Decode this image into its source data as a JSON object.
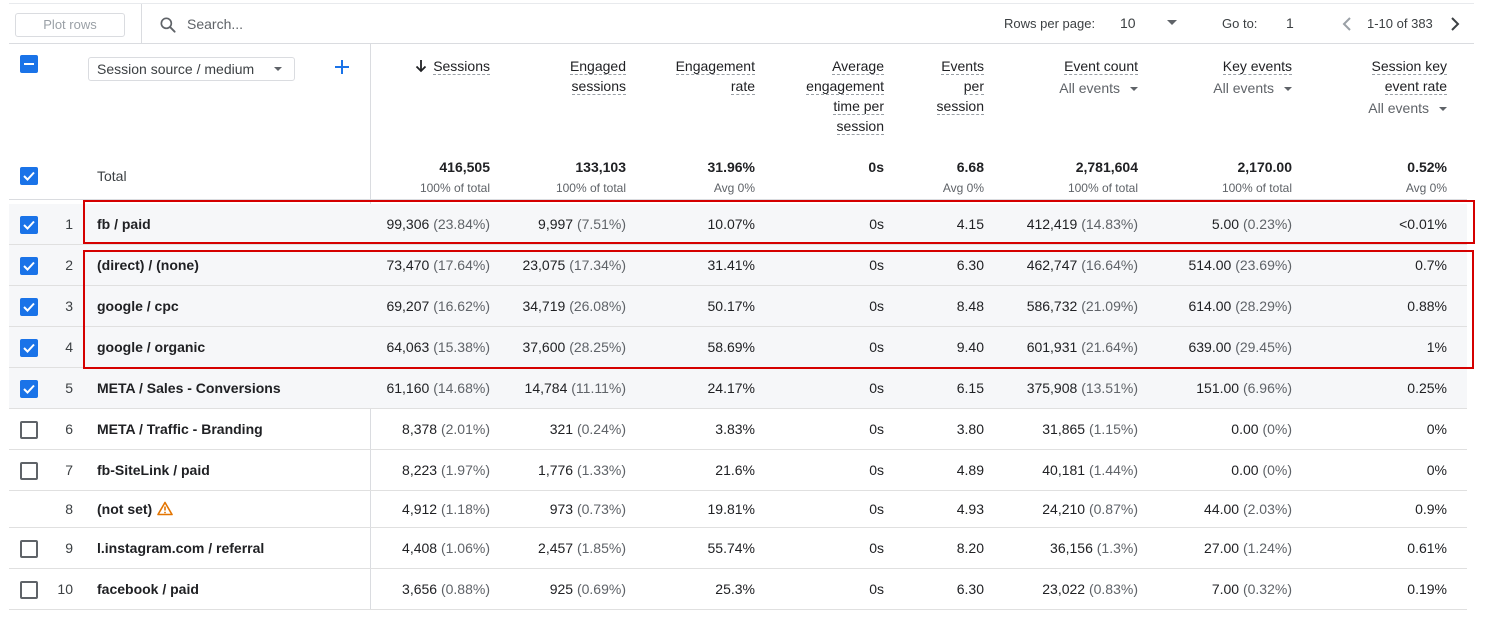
{
  "toolbar": {
    "plot_rows_label": "Plot rows",
    "search_placeholder": "Search...",
    "rows_per_page_label": "Rows per page:",
    "rows_per_page_value": "10",
    "goto_label": "Go to:",
    "goto_value": "1",
    "pagination_range": "1-10 of 383"
  },
  "dimension": {
    "label": "Session source / medium"
  },
  "columns": [
    {
      "key": "sessions",
      "lines": [
        "Sessions"
      ],
      "sorted": true
    },
    {
      "key": "engaged_sessions",
      "lines": [
        "Engaged",
        "sessions"
      ]
    },
    {
      "key": "engagement_rate",
      "lines": [
        "Engagement",
        "rate"
      ]
    },
    {
      "key": "avg_engagement_time",
      "lines": [
        "Average",
        "engagement",
        "time per",
        "session"
      ]
    },
    {
      "key": "events_per_session",
      "lines": [
        "Events",
        "per",
        "session"
      ]
    },
    {
      "key": "event_count",
      "lines": [
        "Event count"
      ],
      "filter": "All events"
    },
    {
      "key": "key_events",
      "lines": [
        "Key events"
      ],
      "filter": "All events"
    },
    {
      "key": "session_key_event_rate",
      "lines": [
        "Session key",
        "event rate"
      ],
      "filter": "All events"
    }
  ],
  "totals": {
    "label": "Total",
    "values": [
      "416,505",
      "133,103",
      "31.96%",
      "0s",
      "6.68",
      "2,781,604",
      "2,170.00",
      "0.52%"
    ],
    "subs": [
      "100% of total",
      "100% of total",
      "Avg 0%",
      "",
      "Avg 0%",
      "100% of total",
      "100% of total",
      "Avg 0%"
    ]
  },
  "rows": [
    {
      "n": "1",
      "dim": "fb / paid",
      "checkbox": "checked",
      "cells": [
        [
          "99,306",
          "(23.84%)"
        ],
        [
          "9,997",
          "(7.51%)"
        ],
        [
          "10.07%",
          ""
        ],
        [
          "0s",
          ""
        ],
        [
          "4.15",
          ""
        ],
        [
          "412,419",
          "(14.83%)"
        ],
        [
          "5.00",
          "(0.23%)"
        ],
        [
          "<0.01%",
          ""
        ]
      ]
    },
    {
      "n": "2",
      "dim": "(direct) / (none)",
      "checkbox": "checked",
      "cells": [
        [
          "73,470",
          "(17.64%)"
        ],
        [
          "23,075",
          "(17.34%)"
        ],
        [
          "31.41%",
          ""
        ],
        [
          "0s",
          ""
        ],
        [
          "6.30",
          ""
        ],
        [
          "462,747",
          "(16.64%)"
        ],
        [
          "514.00",
          "(23.69%)"
        ],
        [
          "0.7%",
          ""
        ]
      ]
    },
    {
      "n": "3",
      "dim": "google / cpc",
      "checkbox": "checked",
      "cells": [
        [
          "69,207",
          "(16.62%)"
        ],
        [
          "34,719",
          "(26.08%)"
        ],
        [
          "50.17%",
          ""
        ],
        [
          "0s",
          ""
        ],
        [
          "8.48",
          ""
        ],
        [
          "586,732",
          "(21.09%)"
        ],
        [
          "614.00",
          "(28.29%)"
        ],
        [
          "0.88%",
          ""
        ]
      ]
    },
    {
      "n": "4",
      "dim": "google / organic",
      "checkbox": "checked",
      "cells": [
        [
          "64,063",
          "(15.38%)"
        ],
        [
          "37,600",
          "(28.25%)"
        ],
        [
          "58.69%",
          ""
        ],
        [
          "0s",
          ""
        ],
        [
          "9.40",
          ""
        ],
        [
          "601,931",
          "(21.64%)"
        ],
        [
          "639.00",
          "(29.45%)"
        ],
        [
          "1%",
          ""
        ]
      ]
    },
    {
      "n": "5",
      "dim": "META / Sales - Conversions",
      "checkbox": "checked",
      "cells": [
        [
          "61,160",
          "(14.68%)"
        ],
        [
          "14,784",
          "(11.11%)"
        ],
        [
          "24.17%",
          ""
        ],
        [
          "0s",
          ""
        ],
        [
          "6.15",
          ""
        ],
        [
          "375,908",
          "(13.51%)"
        ],
        [
          "151.00",
          "(6.96%)"
        ],
        [
          "0.25%",
          ""
        ]
      ]
    },
    {
      "n": "6",
      "dim": "META / Traffic - Branding",
      "checkbox": "empty",
      "cells": [
        [
          "8,378",
          "(2.01%)"
        ],
        [
          "321",
          "(0.24%)"
        ],
        [
          "3.83%",
          ""
        ],
        [
          "0s",
          ""
        ],
        [
          "3.80",
          ""
        ],
        [
          "31,865",
          "(1.15%)"
        ],
        [
          "0.00",
          "(0%)"
        ],
        [
          "0%",
          ""
        ]
      ]
    },
    {
      "n": "7",
      "dim": "fb-SiteLink / paid",
      "checkbox": "empty",
      "cells": [
        [
          "8,223",
          "(1.97%)"
        ],
        [
          "1,776",
          "(1.33%)"
        ],
        [
          "21.6%",
          ""
        ],
        [
          "0s",
          ""
        ],
        [
          "4.89",
          ""
        ],
        [
          "40,181",
          "(1.44%)"
        ],
        [
          "0.00",
          "(0%)"
        ],
        [
          "0%",
          ""
        ]
      ]
    },
    {
      "n": "8",
      "dim": "(not set)",
      "checkbox": "none",
      "warning": true,
      "cells": [
        [
          "4,912",
          "(1.18%)"
        ],
        [
          "973",
          "(0.73%)"
        ],
        [
          "19.81%",
          ""
        ],
        [
          "0s",
          ""
        ],
        [
          "4.93",
          ""
        ],
        [
          "24,210",
          "(0.87%)"
        ],
        [
          "44.00",
          "(2.03%)"
        ],
        [
          "0.9%",
          ""
        ]
      ]
    },
    {
      "n": "9",
      "dim": "l.instagram.com / referral",
      "checkbox": "empty",
      "cells": [
        [
          "4,408",
          "(1.06%)"
        ],
        [
          "2,457",
          "(1.85%)"
        ],
        [
          "55.74%",
          ""
        ],
        [
          "0s",
          ""
        ],
        [
          "8.20",
          ""
        ],
        [
          "36,156",
          "(1.3%)"
        ],
        [
          "27.00",
          "(1.24%)"
        ],
        [
          "0.61%",
          ""
        ]
      ]
    },
    {
      "n": "10",
      "dim": "facebook / paid",
      "checkbox": "empty",
      "cells": [
        [
          "3,656",
          "(0.88%)"
        ],
        [
          "925",
          "(0.69%)"
        ],
        [
          "25.3%",
          ""
        ],
        [
          "0s",
          ""
        ],
        [
          "6.30",
          ""
        ],
        [
          "23,022",
          "(0.83%)"
        ],
        [
          "7.00",
          "(0.32%)"
        ],
        [
          "0.19%",
          ""
        ]
      ]
    }
  ],
  "colors": {
    "accent": "#1a73e8",
    "highlight": "#d50000",
    "warning": "#e37400"
  },
  "icons": {
    "search": "search-icon",
    "add": "plus-icon",
    "sort": "arrow-down-icon",
    "warning": "warning-icon"
  }
}
